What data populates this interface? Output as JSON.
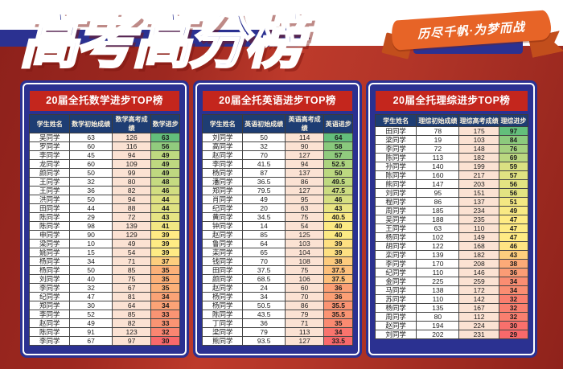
{
  "page": {
    "title": "高考高分榜",
    "ribbon_text": "历尽千帆·为梦而战",
    "colors": {
      "background_red": "#a5291f",
      "band_navy": "#2b3191",
      "panel_navy": "#2b3191",
      "panel_title_red": "#c4261d",
      "table_header_navy": "#1e3d73",
      "gaokao_column_bg": "#fbe2d3",
      "ribbon_orange": "#e76427",
      "ribbon_fold_orange": "#c24e1c",
      "scale_green": "#63be7b",
      "scale_yellow": "#ffeb84",
      "scale_red": "#f8696b"
    }
  },
  "tables": [
    {
      "title": "20届全托数学进步TOP榜",
      "columns": [
        "学生姓名",
        "数学初始成绩",
        "数学高考成绩",
        "数学进步"
      ],
      "rows": [
        [
          "吴同学",
          63,
          126,
          63
        ],
        [
          "罗同学",
          60,
          116,
          56
        ],
        [
          "李同学",
          45,
          94,
          49
        ],
        [
          "龙同学",
          60,
          109,
          49
        ],
        [
          "颜同学",
          50,
          99,
          49
        ],
        [
          "王同学",
          32,
          80,
          48
        ],
        [
          "王同学",
          36,
          82,
          46
        ],
        [
          "洪同学",
          50,
          94,
          44
        ],
        [
          "田同学",
          44,
          88,
          44
        ],
        [
          "陈同学",
          29,
          72,
          43
        ],
        [
          "陈同学",
          98,
          139,
          41
        ],
        [
          "申同学",
          90,
          129,
          39
        ],
        [
          "梁同学",
          10,
          49,
          39
        ],
        [
          "姚同学",
          15,
          54,
          39
        ],
        [
          "杨同学",
          34,
          71,
          37
        ],
        [
          "杨同学",
          50,
          85,
          35
        ],
        [
          "刘同学",
          40,
          75,
          35
        ],
        [
          "李同学",
          32,
          67,
          35
        ],
        [
          "纪同学",
          47,
          81,
          34
        ],
        [
          "郑同学",
          30,
          64,
          34
        ],
        [
          "李同学",
          52,
          85,
          33
        ],
        [
          "赵同学",
          49,
          82,
          33
        ],
        [
          "陈同学",
          91,
          123,
          32
        ],
        [
          "李同学",
          67,
          97,
          30
        ]
      ]
    },
    {
      "title": "20届全托英语进步TOP榜",
      "columns": [
        "学生姓名",
        "英语初始成绩",
        "英语高考成绩",
        "英语进步"
      ],
      "rows": [
        [
          "刘同学",
          50,
          114,
          64
        ],
        [
          "高同学",
          32,
          90,
          58
        ],
        [
          "赵同学",
          70,
          127,
          57
        ],
        [
          "李同学",
          41.5,
          94,
          52.5
        ],
        [
          "杨同学",
          87,
          137,
          50
        ],
        [
          "潘同学",
          36.5,
          86,
          49.5
        ],
        [
          "郑同学",
          79.5,
          127,
          47.5
        ],
        [
          "肖同学",
          49,
          95,
          46
        ],
        [
          "纪同学",
          20,
          63,
          43
        ],
        [
          "黄同学",
          34.5,
          75,
          40.5
        ],
        [
          "钟同学",
          14,
          54,
          40
        ],
        [
          "赵同学",
          85,
          125,
          40
        ],
        [
          "鲁同学",
          64,
          103,
          39
        ],
        [
          "栾同学",
          65,
          104,
          39
        ],
        [
          "钱同学",
          70,
          108,
          38
        ],
        [
          "田同学",
          37.5,
          75,
          37.5
        ],
        [
          "颜同学",
          68.5,
          106,
          37.5
        ],
        [
          "赵同学",
          24,
          60,
          36
        ],
        [
          "杨同学",
          34,
          70,
          36
        ],
        [
          "杨同学",
          50.5,
          86,
          35.5
        ],
        [
          "陈同学",
          43.5,
          79,
          35.5
        ],
        [
          "丁同学",
          36,
          71,
          35
        ],
        [
          "梁同学",
          79,
          113,
          34
        ],
        [
          "熊同学",
          93.5,
          127,
          33.5
        ]
      ]
    },
    {
      "title": "20届全托理综进步TOP榜",
      "columns": [
        "学生姓名",
        "理综初始成绩",
        "理综高考成绩",
        "理综进步"
      ],
      "rows": [
        [
          "田同学",
          78,
          175,
          97
        ],
        [
          "梁同学",
          19,
          103,
          84
        ],
        [
          "李同学",
          72,
          148,
          76
        ],
        [
          "陈同学",
          113,
          182,
          69
        ],
        [
          "孙同学",
          140,
          199,
          59
        ],
        [
          "陈同学",
          160,
          217,
          57
        ],
        [
          "熊同学",
          147,
          203,
          56
        ],
        [
          "刘同学",
          95,
          151,
          56
        ],
        [
          "程同学",
          86,
          137,
          51
        ],
        [
          "周同学",
          185,
          234,
          49
        ],
        [
          "吴同学",
          188,
          235,
          47
        ],
        [
          "王同学",
          63,
          110,
          47
        ],
        [
          "杨同学",
          102,
          149,
          47
        ],
        [
          "胡同学",
          122,
          168,
          46
        ],
        [
          "栾同学",
          139,
          182,
          43
        ],
        [
          "李同学",
          170,
          208,
          38
        ],
        [
          "纪同学",
          110,
          146,
          36
        ],
        [
          "金同学",
          225,
          259,
          34
        ],
        [
          "马同学",
          138,
          172,
          34
        ],
        [
          "苏同学",
          110,
          142,
          32
        ],
        [
          "杨同学",
          135,
          167,
          32
        ],
        [
          "周同学",
          80,
          112,
          32
        ],
        [
          "赵同学",
          194,
          224,
          30
        ],
        [
          "刘同学",
          202,
          231,
          29
        ]
      ]
    }
  ]
}
